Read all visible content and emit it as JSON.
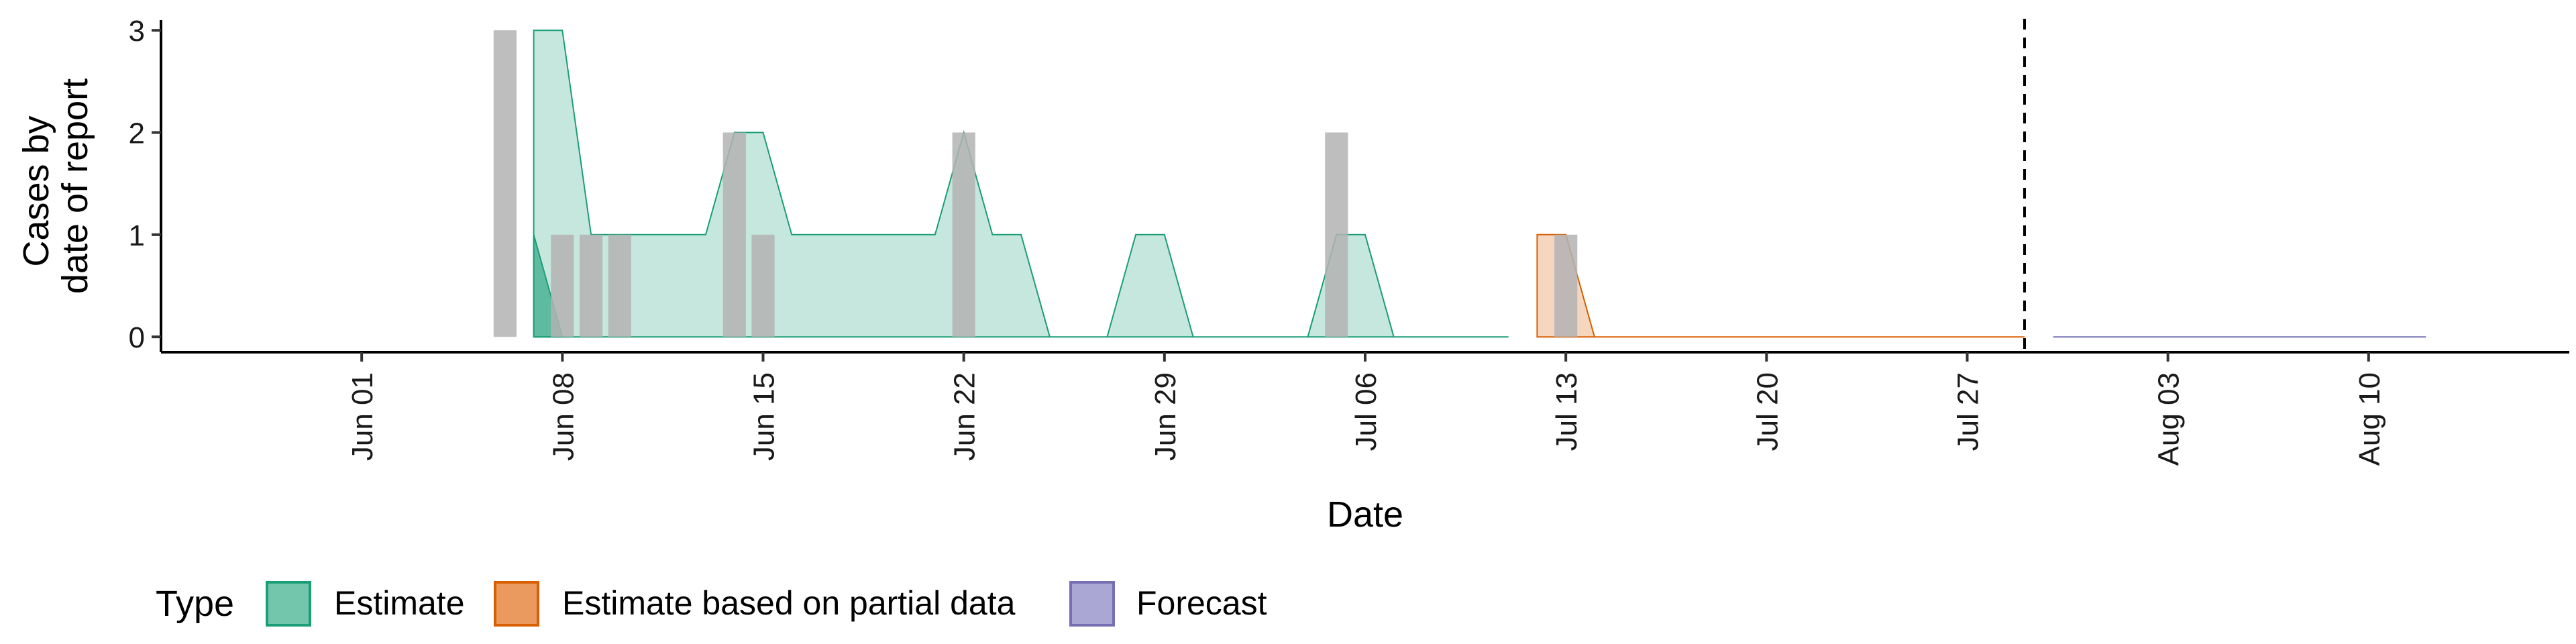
{
  "chart_data": {
    "type": "area",
    "xlabel": "Date",
    "ylabel_lines": [
      "Cases by",
      "date of report"
    ],
    "yticks": [
      0,
      1,
      2,
      3
    ],
    "ylim": [
      -0.15,
      3.1
    ],
    "x_domain": [
      "2020-05-25",
      "2020-08-17"
    ],
    "xticks": [
      {
        "date": "2020-06-01",
        "label": "Jun 01"
      },
      {
        "date": "2020-06-08",
        "label": "Jun 08"
      },
      {
        "date": "2020-06-15",
        "label": "Jun 15"
      },
      {
        "date": "2020-06-22",
        "label": "Jun 22"
      },
      {
        "date": "2020-06-29",
        "label": "Jun 29"
      },
      {
        "date": "2020-07-06",
        "label": "Jul 06"
      },
      {
        "date": "2020-07-13",
        "label": "Jul 13"
      },
      {
        "date": "2020-07-20",
        "label": "Jul 20"
      },
      {
        "date": "2020-07-27",
        "label": "Jul 27"
      },
      {
        "date": "2020-08-03",
        "label": "Aug 03"
      },
      {
        "date": "2020-08-10",
        "label": "Aug 10"
      }
    ],
    "forecast_date": "2020-07-29",
    "observed_cases": [
      {
        "date": "2020-06-06",
        "value": 3
      },
      {
        "date": "2020-06-08",
        "value": 1
      },
      {
        "date": "2020-06-09",
        "value": 1
      },
      {
        "date": "2020-06-10",
        "value": 1
      },
      {
        "date": "2020-06-14",
        "value": 2
      },
      {
        "date": "2020-06-15",
        "value": 1
      },
      {
        "date": "2020-06-22",
        "value": 2
      },
      {
        "date": "2020-07-05",
        "value": 2
      },
      {
        "date": "2020-07-13",
        "value": 1
      }
    ],
    "series": [
      {
        "name": "Estimate",
        "fill": "#1b9e77",
        "bands": [
          {
            "x": [
              "2020-06-07",
              "2020-06-08",
              "2020-06-09",
              "2020-06-10",
              "2020-06-11",
              "2020-06-12",
              "2020-06-13",
              "2020-06-14",
              "2020-06-15",
              "2020-06-16",
              "2020-06-17",
              "2020-06-18",
              "2020-06-19",
              "2020-06-20",
              "2020-06-21",
              "2020-06-22",
              "2020-06-23",
              "2020-06-24",
              "2020-06-25",
              "2020-06-26",
              "2020-06-27",
              "2020-06-28",
              "2020-06-29",
              "2020-06-30",
              "2020-07-01",
              "2020-07-02",
              "2020-07-03",
              "2020-07-04",
              "2020-07-05",
              "2020-07-06",
              "2020-07-07",
              "2020-07-08",
              "2020-07-09",
              "2020-07-10",
              "2020-07-11"
            ],
            "upper": [
              3,
              3,
              1,
              1,
              1,
              1,
              1,
              2,
              2,
              1,
              1,
              1,
              1,
              1,
              1,
              2,
              1,
              1,
              0,
              0,
              0,
              1,
              1,
              0,
              0,
              0,
              0,
              0,
              1,
              1,
              0,
              0,
              0,
              0,
              0
            ],
            "lower": [
              0,
              0,
              0,
              0,
              0,
              0,
              0,
              0,
              0,
              0,
              0,
              0,
              0,
              0,
              0,
              0,
              0,
              0,
              0,
              0,
              0,
              0,
              0,
              0,
              0,
              0,
              0,
              0,
              0,
              0,
              0,
              0,
              0,
              0,
              0
            ]
          },
          {
            "x": [
              "2020-06-07",
              "2020-06-08"
            ],
            "upper": [
              1,
              0
            ],
            "lower": [
              0,
              0
            ]
          }
        ]
      },
      {
        "name": "Estimate based on partial data",
        "fill": "#d95f02",
        "bands": [
          {
            "x": [
              "2020-07-12",
              "2020-07-13",
              "2020-07-14",
              "2020-07-15",
              "2020-07-20",
              "2020-07-25",
              "2020-07-29"
            ],
            "upper": [
              1,
              1,
              0,
              0,
              0,
              0,
              0
            ],
            "lower": [
              0,
              0,
              0,
              0,
              0,
              0,
              0
            ]
          }
        ]
      },
      {
        "name": "Forecast",
        "fill": "#7570b3",
        "bands": [
          {
            "x": [
              "2020-07-30",
              "2020-08-12"
            ],
            "upper": [
              0,
              0
            ],
            "lower": [
              0,
              0
            ]
          }
        ]
      }
    ],
    "legend": {
      "title": "Type",
      "position": "bottom",
      "items": [
        {
          "label": "Estimate",
          "fill": "#73c5ab",
          "stroke": "#1b9e77"
        },
        {
          "label": "Estimate based on partial data",
          "fill": "#ea9a5e",
          "stroke": "#d95f02"
        },
        {
          "label": "Forecast",
          "fill": "#aaa7d4",
          "stroke": "#7570b3"
        }
      ]
    },
    "colors": {
      "bar": "#b3b3b3",
      "axis": "#000000",
      "forecast_line": "#000000"
    }
  }
}
